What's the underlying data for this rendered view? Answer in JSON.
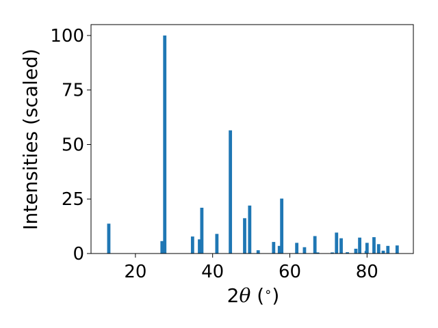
{
  "chart_data": {
    "type": "bar",
    "title": "",
    "xlabel_parts": [
      "2",
      "θ",
      " (",
      "∘",
      ")"
    ],
    "ylabel": "Intensities (scaled)",
    "xlim": [
      8.5,
      92
    ],
    "ylim": [
      0,
      105
    ],
    "xticks": [
      20,
      40,
      60,
      80
    ],
    "yticks": [
      0,
      25,
      50,
      75,
      100
    ],
    "grid": false,
    "legend": "none",
    "bar_color": "#1f77b4",
    "x": [
      13.1,
      26.9,
      27.6,
      34.8,
      36.6,
      37.2,
      41.1,
      44.6,
      48.3,
      49.6,
      51.8,
      55.8,
      57.3,
      57.9,
      61.8,
      63.8,
      66.5,
      67.2,
      71.0,
      72.1,
      73.3,
      74.9,
      77.1,
      78.1,
      79.8,
      80.0,
      81.8,
      83.0,
      84.2,
      85.4,
      87.8
    ],
    "values": [
      13.7,
      5.7,
      100,
      7.8,
      6.5,
      21.0,
      9.0,
      56.5,
      16.2,
      22.0,
      1.5,
      5.3,
      3.5,
      25.2,
      4.9,
      2.9,
      8.0,
      0.5,
      0.5,
      9.6,
      7.0,
      0.6,
      2.2,
      7.3,
      1.2,
      4.9,
      7.5,
      4.3,
      1.3,
      3.5,
      3.7
    ]
  }
}
